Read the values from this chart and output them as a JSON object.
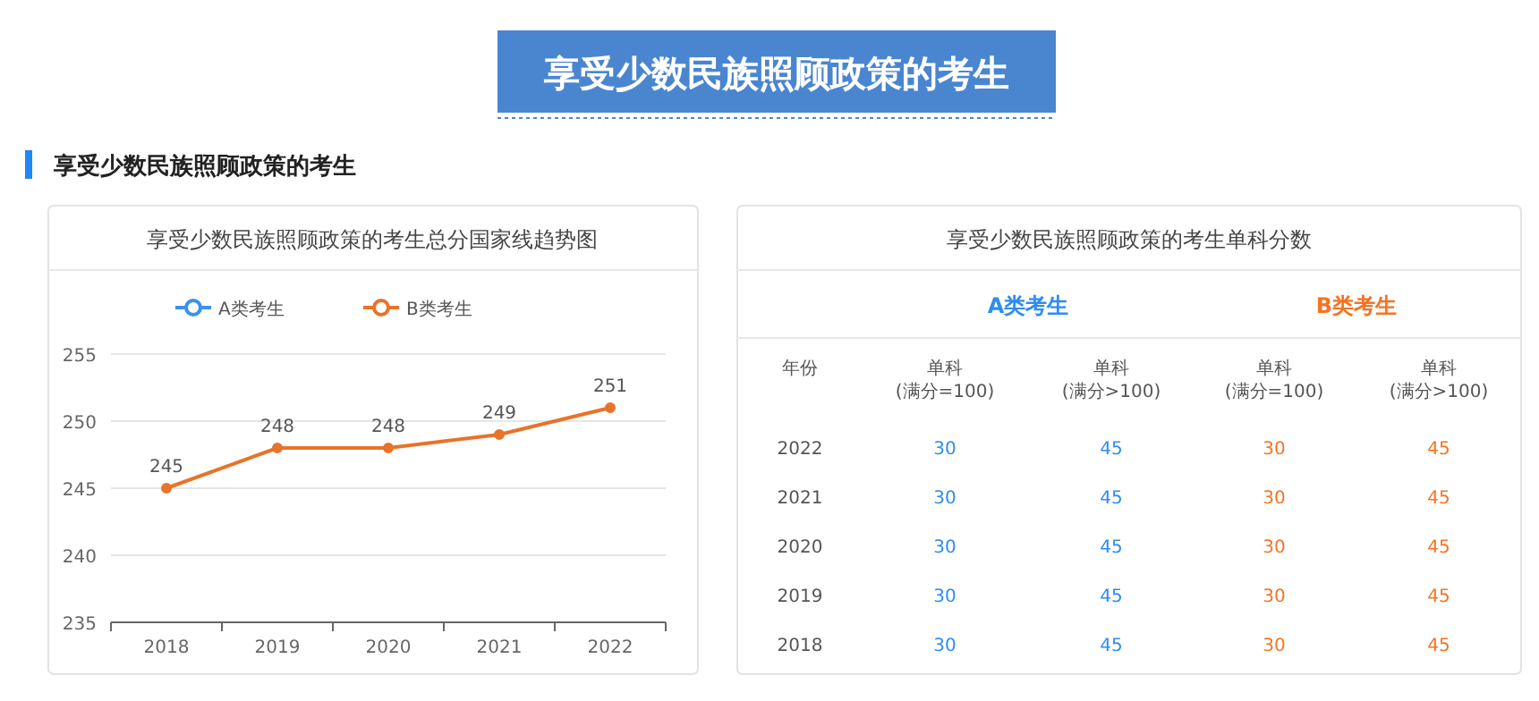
{
  "chart_data": [
    {
      "type": "line",
      "title": "享受少数民族照顾政策的考生总分国家线趋势图",
      "annotations": [
        "享受少数民族照顾政策的考生",
        "享受少数民族照顾政策的考生"
      ],
      "categories": [
        "2018",
        "2019",
        "2020",
        "2021",
        "2022"
      ],
      "series": [
        {
          "name": "A类考生",
          "color": "#3d8ff0",
          "values": [
            null,
            null,
            null,
            null,
            null
          ]
        },
        {
          "name": "B类考生",
          "color": "#e8732a",
          "values": [
            245,
            248,
            248,
            249,
            251
          ]
        }
      ],
      "ylim": [
        235,
        255
      ],
      "yticks": [
        235,
        240,
        245,
        250,
        255
      ],
      "grid": "y",
      "legend": "top",
      "marker": "circle",
      "data_labels": true
    },
    {
      "type": "heatmap",
      "title": "享受少数民族照顾政策的考生单科分数",
      "ylabel": "年份",
      "annotations": [
        "A类考生",
        "B类考生"
      ],
      "colors": [
        "#2f8cf2",
        "#2f8cf2",
        "#f57322",
        "#f57322"
      ],
      "categories": [
        "单科\n(满分=100)",
        "单科\n(满分>100)",
        "单科\n(满分=100)",
        "单科\n(满分>100)"
      ],
      "y_categories": [
        "2022",
        "2021",
        "2020",
        "2019",
        "2018"
      ],
      "cells": [
        [
          30,
          45,
          30,
          45
        ],
        [
          30,
          45,
          30,
          45
        ],
        [
          30,
          45,
          30,
          45
        ],
        [
          30,
          45,
          30,
          45
        ],
        [
          30,
          45,
          30,
          45
        ]
      ],
      "data_labels": true
    }
  ]
}
